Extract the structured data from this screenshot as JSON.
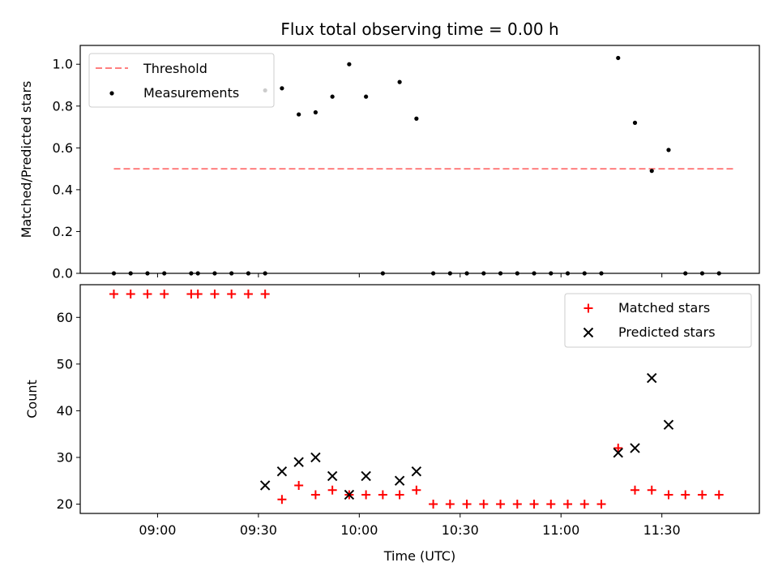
{
  "chart_data": [
    {
      "type": "scatter",
      "title": "Flux total observing time = 0.00 h",
      "xlabel": "",
      "ylabel": "Matched/Predicted stars",
      "xlim": [
        "08:37",
        "11:59"
      ],
      "ylim": [
        0,
        1.09
      ],
      "y_ticks": [
        "0.0",
        "0.2",
        "0.4",
        "0.6",
        "0.8",
        "1.0"
      ],
      "legend_position": "upper-left",
      "threshold": {
        "name": "Threshold",
        "color": "#ff7f7f",
        "x": [
          "08:47",
          "11:52"
        ],
        "y": 0.5
      },
      "series": [
        {
          "name": "Measurements",
          "color": "#000000",
          "x": [
            "08:47",
            "08:52",
            "08:57",
            "09:02",
            "09:10",
            "09:12",
            "09:17",
            "09:22",
            "09:27",
            "09:32",
            "09:32",
            "09:37",
            "09:42",
            "09:47",
            "09:52",
            "09:57",
            "10:02",
            "10:07",
            "10:12",
            "10:17",
            "10:22",
            "10:27",
            "10:32",
            "10:37",
            "10:42",
            "10:47",
            "10:52",
            "10:57",
            "11:02",
            "11:07",
            "11:12",
            "11:17",
            "11:22",
            "11:27",
            "11:32",
            "11:37",
            "11:42",
            "11:47"
          ],
          "y": [
            0,
            0,
            0,
            0,
            0,
            0,
            0,
            0,
            0,
            0,
            0.875,
            0.885,
            0.76,
            0.77,
            0.845,
            1.0,
            0.845,
            0,
            0.915,
            0.74,
            0,
            0,
            0,
            0,
            0,
            0,
            0,
            0,
            0,
            0,
            0,
            1.03,
            0.72,
            0.49,
            0.59,
            0,
            0,
            0
          ]
        }
      ]
    },
    {
      "type": "scatter",
      "title": "",
      "xlabel": "Time (UTC)",
      "ylabel": "Count",
      "xlim": [
        "08:37",
        "11:59"
      ],
      "ylim": [
        18,
        67
      ],
      "x_ticks": [
        "09:00",
        "09:30",
        "10:00",
        "10:30",
        "11:00",
        "11:30"
      ],
      "y_ticks": [
        "20",
        "30",
        "40",
        "50",
        "60"
      ],
      "legend_position": "upper-right",
      "series": [
        {
          "name": "Matched stars",
          "color": "#ff0000",
          "marker": "plus",
          "x": [
            "08:47",
            "08:52",
            "08:57",
            "09:02",
            "09:10",
            "09:12",
            "09:17",
            "09:22",
            "09:27",
            "09:32",
            "09:37",
            "09:42",
            "09:47",
            "09:52",
            "09:57",
            "10:02",
            "10:07",
            "10:12",
            "10:17",
            "10:22",
            "10:27",
            "10:32",
            "10:37",
            "10:42",
            "10:47",
            "10:52",
            "10:57",
            "11:02",
            "11:07",
            "11:12",
            "11:17",
            "11:22",
            "11:27",
            "11:32",
            "11:37",
            "11:42",
            "11:47"
          ],
          "y": [
            65,
            65,
            65,
            65,
            65,
            65,
            65,
            65,
            65,
            65,
            21,
            24,
            22,
            23,
            22,
            22,
            22,
            22,
            23,
            20,
            20,
            20,
            20,
            20,
            20,
            20,
            20,
            20,
            20,
            20,
            32,
            23,
            23,
            22,
            22,
            22,
            22
          ]
        },
        {
          "name": "Predicted stars",
          "color": "#000000",
          "marker": "x",
          "x": [
            "09:32",
            "09:37",
            "09:42",
            "09:47",
            "09:52",
            "09:57",
            "10:02",
            "10:12",
            "10:17",
            "11:17",
            "11:22",
            "11:27",
            "11:32"
          ],
          "y": [
            24,
            27,
            29,
            30,
            26,
            22,
            26,
            25,
            27,
            31,
            32,
            47,
            37
          ]
        }
      ]
    }
  ]
}
